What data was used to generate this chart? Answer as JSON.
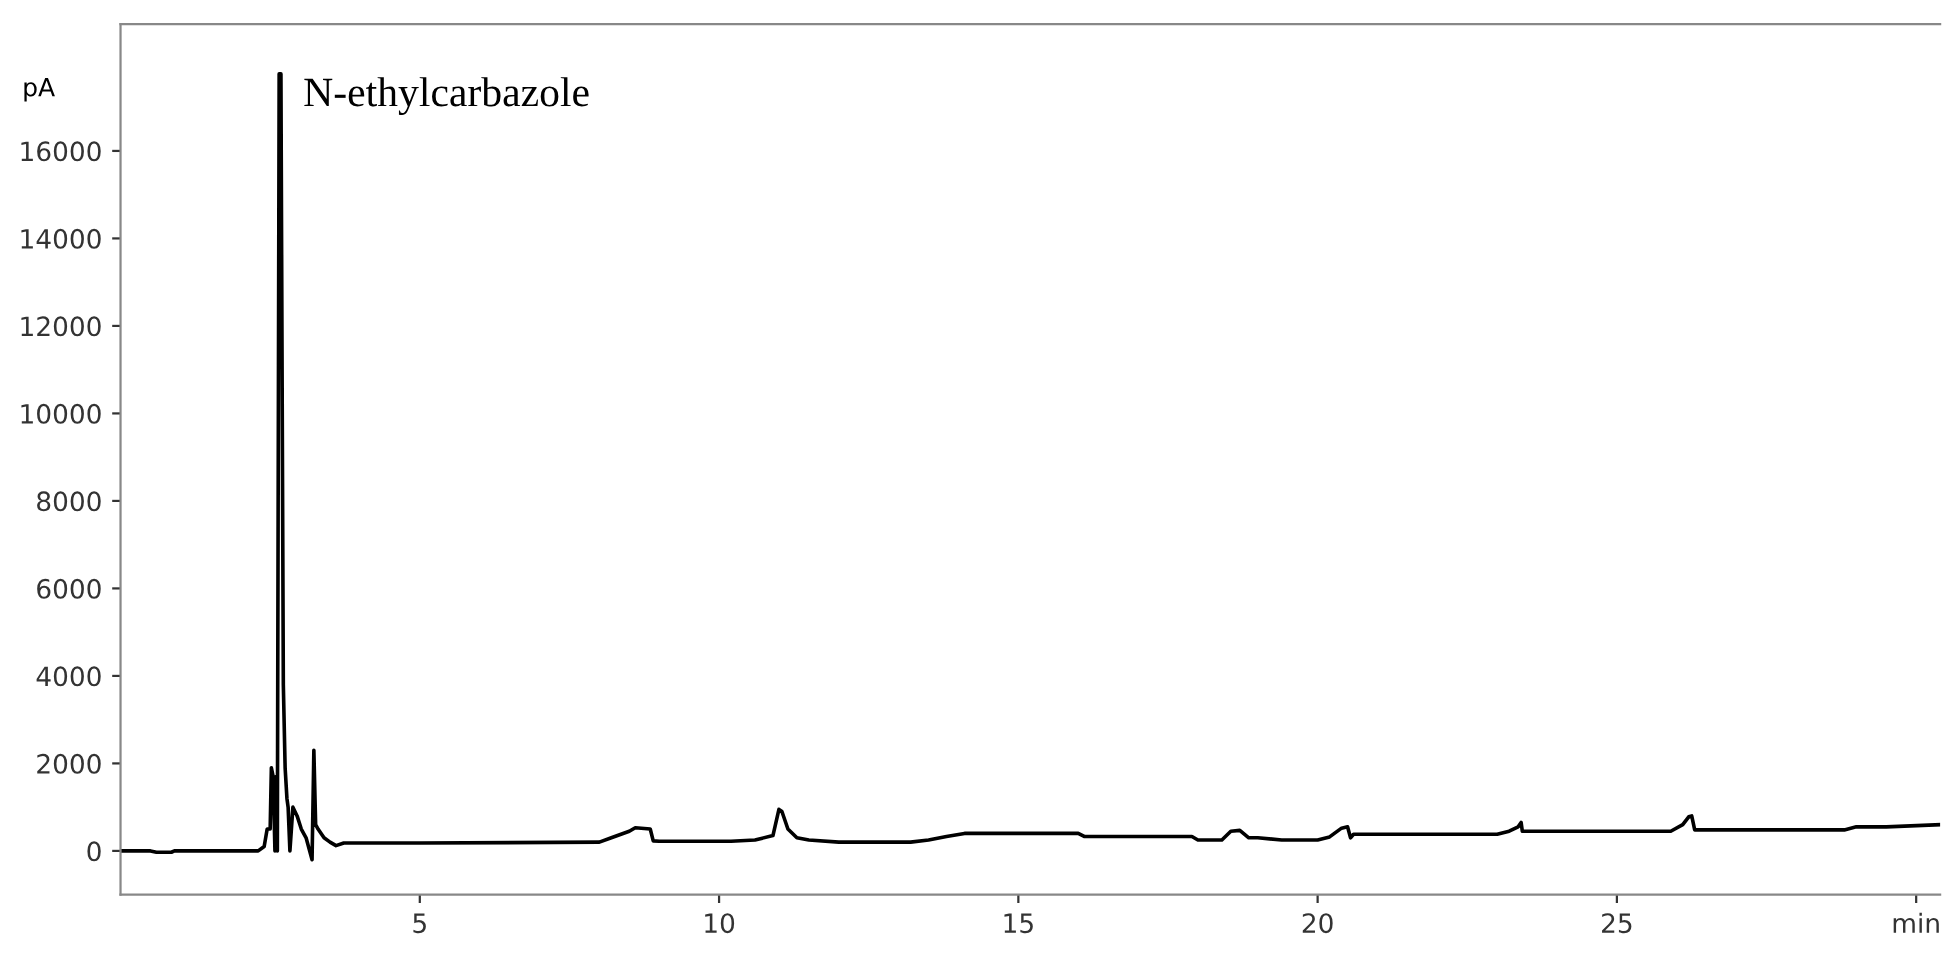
{
  "chart_data": {
    "type": "line",
    "ylabel": "pA",
    "annotations": [
      {
        "text": "N-ethylcarbazole",
        "x": 2.68,
        "y": 17760
      }
    ],
    "xlim": [
      0,
      30.4
    ],
    "ylim": [
      -1000,
      18900
    ],
    "xticks": [
      5,
      10,
      15,
      20,
      25,
      {
        "value": 30,
        "label": "min"
      }
    ],
    "yticks": [
      0,
      2000,
      4000,
      6000,
      8000,
      10000,
      12000,
      14000,
      16000
    ],
    "grid": false,
    "marker": "none",
    "line_style": "solid",
    "series": [
      {
        "color": "#000000",
        "x": [
          0,
          0.5,
          0.6,
          0.85,
          0.9,
          2.3,
          2.4,
          2.45,
          2.5,
          2.52,
          2.55,
          2.58,
          2.6,
          2.62,
          2.65,
          2.68,
          2.72,
          2.75,
          2.78,
          2.8,
          2.83,
          2.88,
          2.95,
          3.02,
          3.1,
          3.2,
          3.23,
          3.26,
          3.3,
          3.4,
          3.5,
          3.6,
          3.73,
          5,
          8.0,
          8.2,
          8.5,
          8.6,
          8.85,
          8.9,
          9.0,
          10.2,
          10.6,
          10.9,
          11.0,
          11.05,
          11.15,
          11.3,
          11.5,
          12.0,
          13.2,
          13.5,
          13.8,
          14.1,
          16.0,
          16.1,
          17.9,
          18.0,
          18.4,
          18.55,
          18.7,
          18.85,
          19.0,
          19.4,
          20.0,
          20.2,
          20.4,
          20.5,
          20.55,
          20.6,
          23.0,
          23.2,
          23.35,
          23.4,
          23.42,
          25.9,
          26.1,
          26.2,
          26.25,
          26.3,
          28.8,
          29.0,
          29.5,
          30.4
        ],
        "values": [
          0,
          0,
          -30,
          -30,
          0,
          0,
          100,
          500,
          500,
          1900,
          1700,
          0,
          1700,
          0,
          17760,
          17760,
          3800,
          1900,
          1200,
          1000,
          0,
          1000,
          800,
          500,
          300,
          -200,
          2300,
          600,
          500,
          300,
          200,
          120,
          180,
          180,
          200,
          300,
          450,
          530,
          500,
          230,
          220,
          220,
          250,
          350,
          950,
          900,
          500,
          300,
          250,
          200,
          200,
          250,
          330,
          400,
          400,
          330,
          330,
          250,
          250,
          450,
          470,
          300,
          300,
          250,
          250,
          320,
          520,
          550,
          300,
          380,
          380,
          450,
          550,
          650,
          450,
          450,
          600,
          780,
          800,
          480,
          480,
          550,
          550,
          600
        ]
      }
    ]
  }
}
